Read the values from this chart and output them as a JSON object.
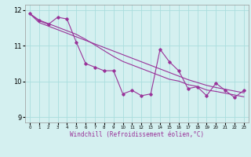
{
  "x": [
    0,
    1,
    2,
    3,
    4,
    5,
    6,
    7,
    8,
    9,
    10,
    11,
    12,
    13,
    14,
    15,
    16,
    17,
    18,
    19,
    20,
    21,
    22,
    23
  ],
  "y_main": [
    11.9,
    11.7,
    11.6,
    11.8,
    11.75,
    11.1,
    10.5,
    10.4,
    10.3,
    10.3,
    9.65,
    9.75,
    9.6,
    9.65,
    10.9,
    10.55,
    10.3,
    9.8,
    9.85,
    9.6,
    9.95,
    9.75,
    9.55,
    9.75
  ],
  "y_upper": [
    11.9,
    11.65,
    11.55,
    11.45,
    11.35,
    11.25,
    11.15,
    11.05,
    10.95,
    10.85,
    10.75,
    10.65,
    10.55,
    10.45,
    10.35,
    10.25,
    10.15,
    10.05,
    9.97,
    9.89,
    9.83,
    9.78,
    9.73,
    9.68
  ],
  "y_lower": [
    11.9,
    11.72,
    11.62,
    11.52,
    11.42,
    11.32,
    11.18,
    11.02,
    10.86,
    10.7,
    10.56,
    10.46,
    10.36,
    10.26,
    10.16,
    10.06,
    10.01,
    9.91,
    9.86,
    9.76,
    9.72,
    9.67,
    9.62,
    9.57
  ],
  "line_color": "#993399",
  "bg_color": "#d4f0f0",
  "grid_color": "#aadddd",
  "ylabel_ticks": [
    9,
    10,
    11,
    12
  ],
  "xlabel": "Windchill (Refroidissement éolien,°C)",
  "ylim": [
    8.85,
    12.15
  ],
  "xlim": [
    -0.5,
    23.5
  ]
}
